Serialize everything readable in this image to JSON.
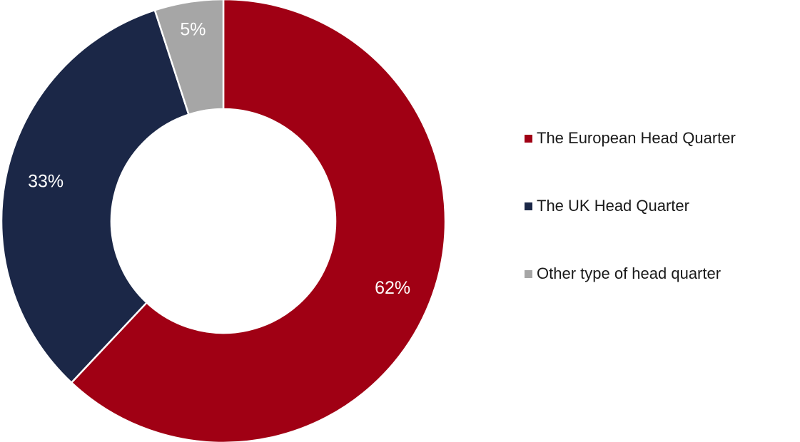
{
  "chart_data": {
    "type": "pie",
    "variant": "donut",
    "slices": [
      {
        "label": "The European Head Quarter",
        "value": 62,
        "display": "62%",
        "color": "#A00014"
      },
      {
        "label": "The UK Head Quarter",
        "value": 33,
        "display": "33%",
        "color": "#1B2747"
      },
      {
        "label": "Other type of head quarter",
        "value": 5,
        "display": "5%",
        "color": "#A6A6A6"
      }
    ],
    "legend_position": "right",
    "start_angle": "12 o'clock",
    "direction": "clockwise"
  }
}
